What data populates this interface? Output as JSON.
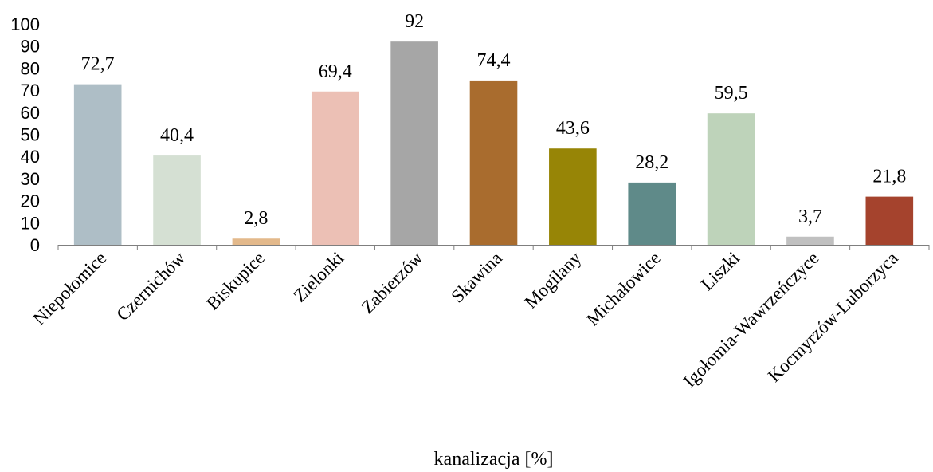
{
  "chart_data": {
    "type": "bar",
    "categories": [
      "Niepołomice",
      "Czernichów",
      "Biskupice",
      "Zielonki",
      "Zabierzów",
      "Skawina",
      "Mogilany",
      "Michałowice",
      "Liszki",
      "Igołomia-Wawrzeńczyce",
      "Kocmyrzów-Luborzyca"
    ],
    "values": [
      72.7,
      40.4,
      2.8,
      69.4,
      92,
      74.4,
      43.6,
      28.2,
      59.5,
      3.7,
      21.8
    ],
    "value_labels": [
      "72,7",
      "40,4",
      "2,8",
      "69,4",
      "92",
      "74,4",
      "43,6",
      "28,2",
      "59,5",
      "3,7",
      "21,8"
    ],
    "bar_colors": [
      "#aebec6",
      "#d5e0d3",
      "#e3b98b",
      "#ecc0b5",
      "#a6a6a6",
      "#a96c2e",
      "#978506",
      "#5f8a89",
      "#bed3ba",
      "#c0c0c0",
      "#a5432d"
    ],
    "title": "",
    "xlabel": "kanalizacja [%]",
    "ylabel": "",
    "ylim": [
      0,
      100
    ],
    "yticks": [
      0,
      10,
      20,
      30,
      40,
      50,
      60,
      70,
      80,
      90,
      100
    ],
    "grid": false,
    "legend": "none"
  }
}
